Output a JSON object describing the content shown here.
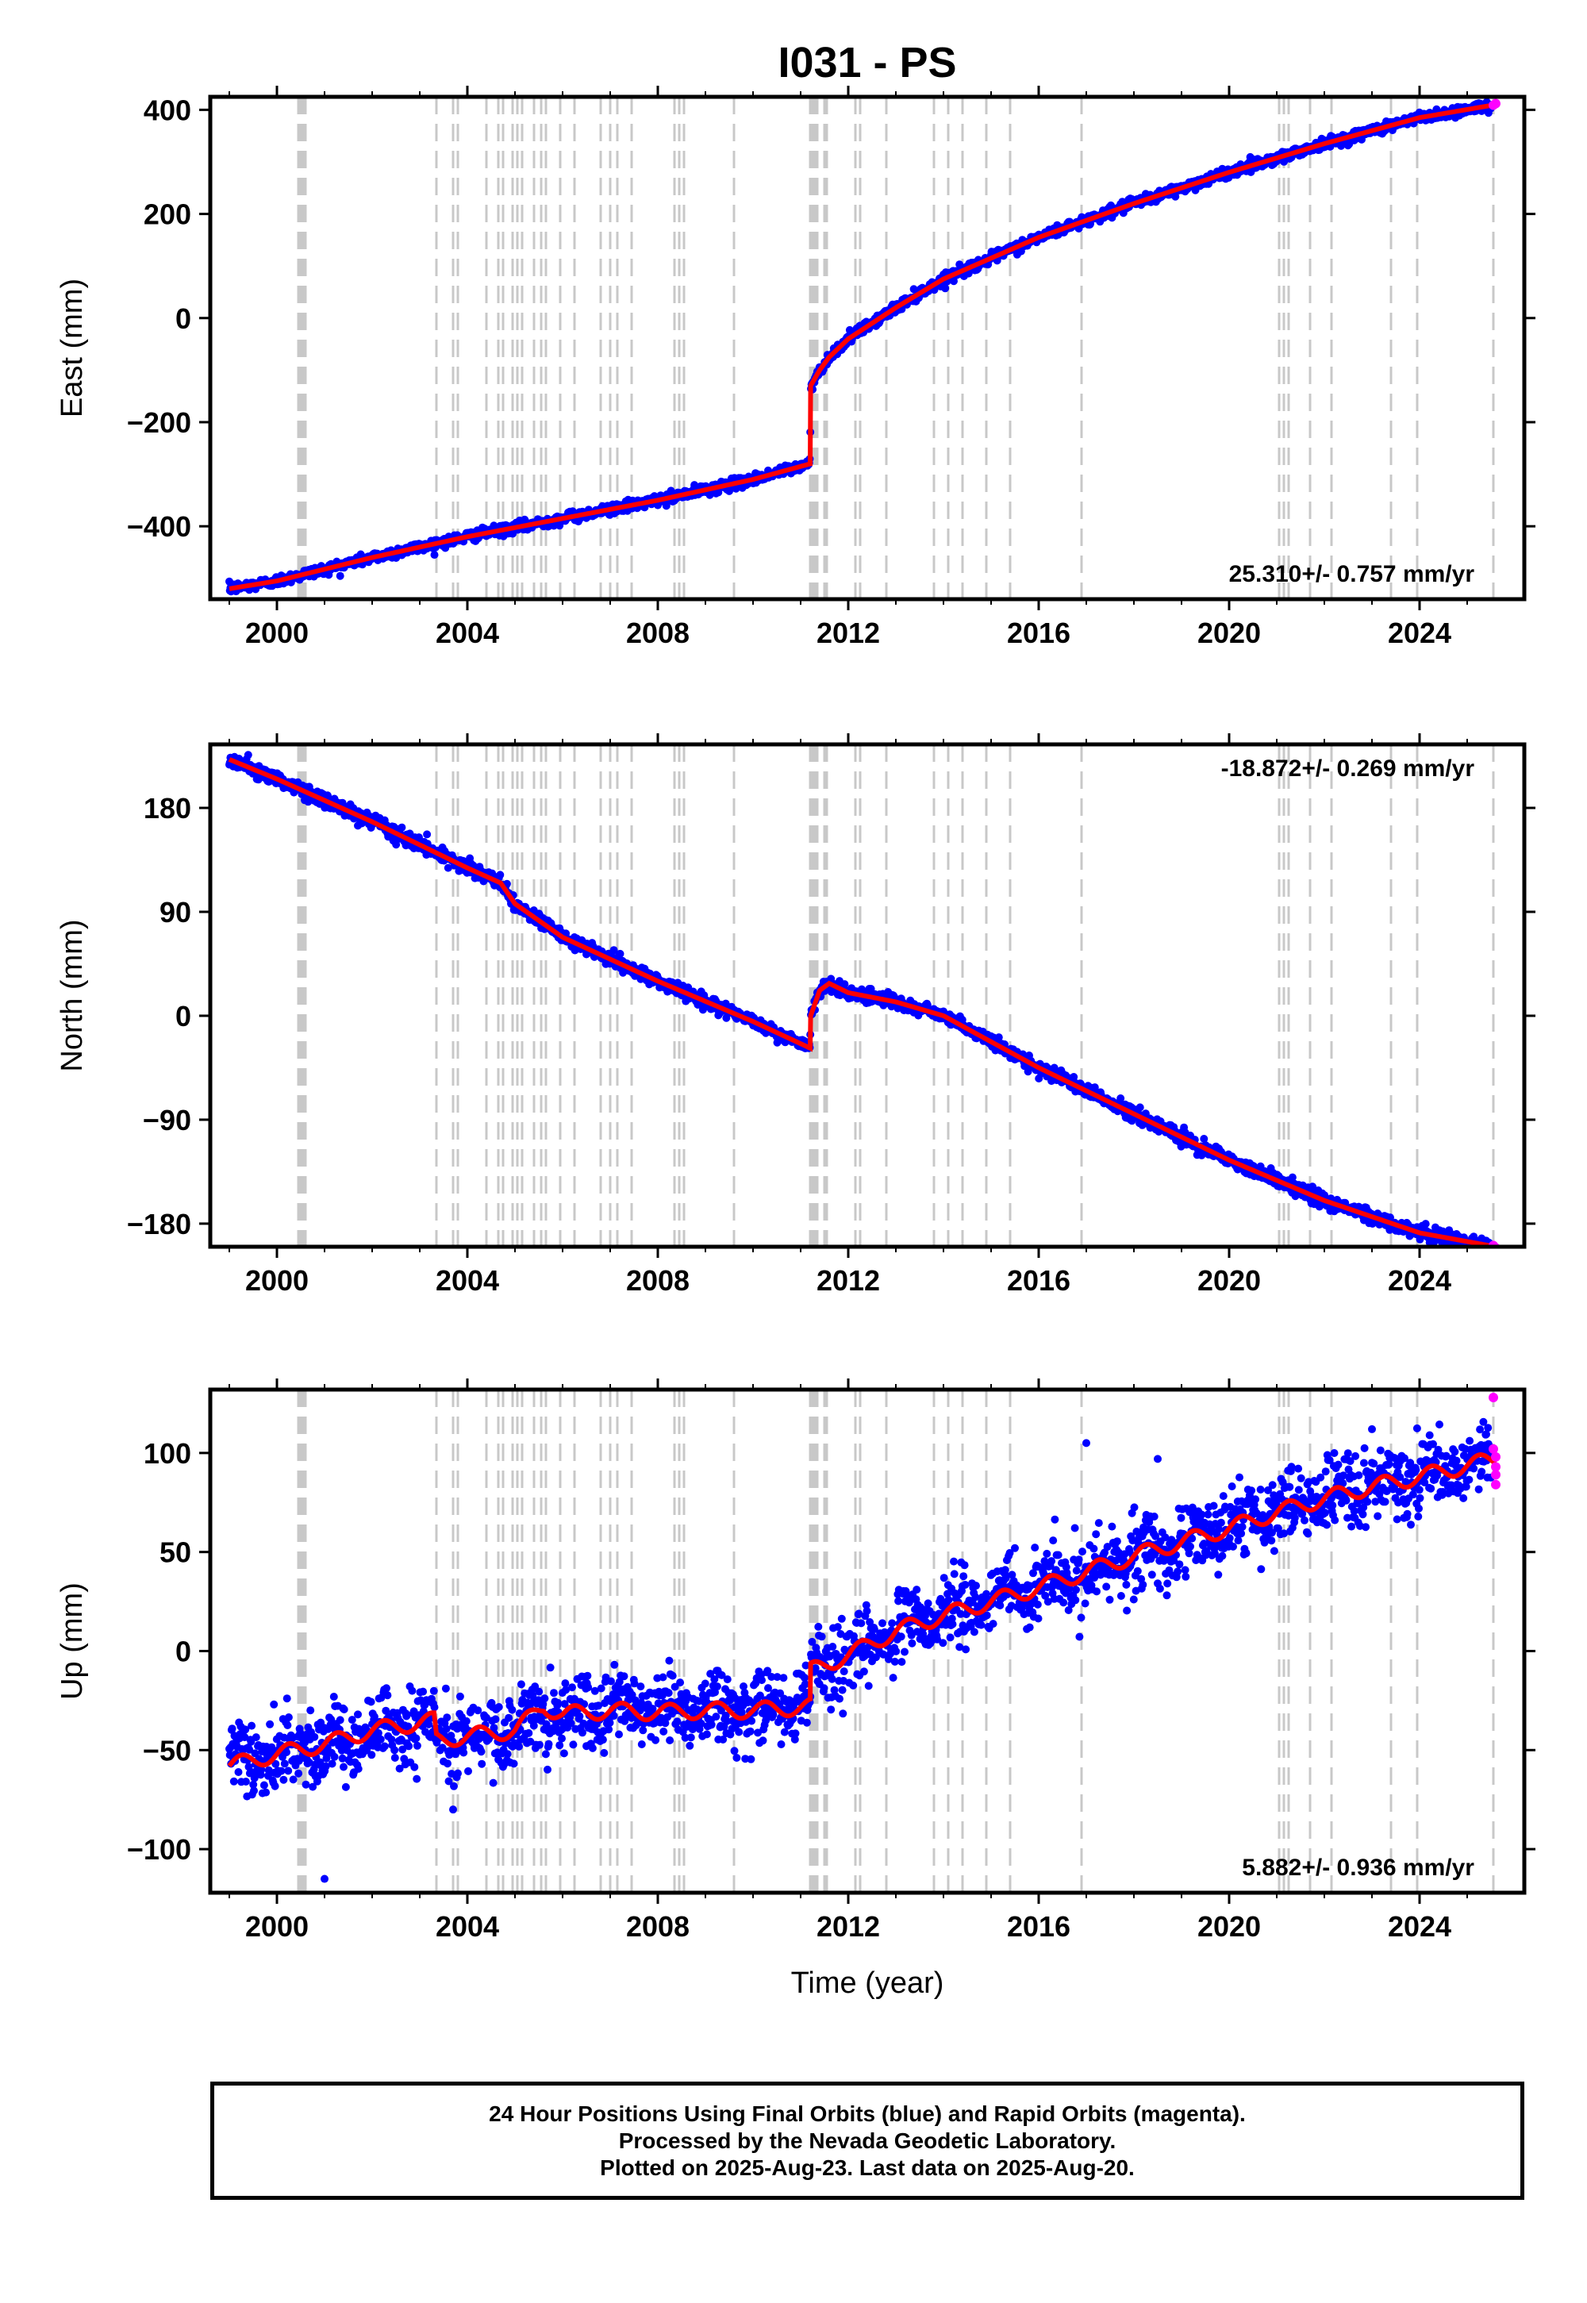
{
  "title": "I031 - PS",
  "shared": {
    "x_ticks": [
      "2000",
      "2004",
      "2008",
      "2012",
      "2016",
      "2020",
      "2024"
    ],
    "x_tick_values": [
      2000,
      2004,
      2008,
      2012,
      2016,
      2020,
      2024
    ],
    "xlim": [
      1998.6,
      2026.2
    ],
    "xlabel": "Time (year)",
    "event_lines_dense": [
      2000.45,
      2000.5,
      2000.55,
      2000.6,
      2011.2,
      2011.25,
      2011.3,
      2011.35,
      2011.5,
      2011.55
    ],
    "event_lines": [
      2003.35,
      2003.7,
      2003.8,
      2004.4,
      2004.65,
      2004.75,
      2004.95,
      2005.05,
      2005.15,
      2005.4,
      2005.55,
      2005.65,
      2005.95,
      2006.25,
      2006.8,
      2007.0,
      2007.15,
      2007.45,
      2008.35,
      2008.45,
      2008.55,
      2009.6,
      2012.15,
      2012.25,
      2012.8,
      2013.8,
      2014.1,
      2014.4,
      2014.9,
      2015.4,
      2016.9,
      2021.05,
      2021.15,
      2021.25,
      2021.7,
      2022.15,
      2023.4,
      2023.95,
      2025.55
    ]
  },
  "chart_data": [
    {
      "type": "scatter",
      "panel": "east",
      "ylabel": "East (mm)",
      "ylim": [
        -540,
        425
      ],
      "y_ticks": [
        "400",
        "200",
        "0",
        "−200",
        "−400"
      ],
      "y_tick_values": [
        400,
        200,
        0,
        -200,
        -400
      ],
      "rate_label": "25.310+/- 0.757 mm/yr",
      "rate_position": "bottom-right",
      "series": [
        {
          "name": "Final Orbits",
          "color": "#0000ff"
        },
        {
          "name": "Fit",
          "color": "#ff0000"
        },
        {
          "name": "Rapid Orbits",
          "color": "#ff00ff"
        }
      ],
      "trend": {
        "x": [
          1999.0,
          2000.0,
          2002.0,
          2004.0,
          2006.0,
          2008.0,
          2010.0,
          2011.2,
          2011.21,
          2011.4,
          2011.6,
          2012.0,
          2013.0,
          2014.0,
          2016.0,
          2018.0,
          2020.0,
          2022.0,
          2024.0,
          2025.6
        ],
        "y": [
          -520,
          -505,
          -460,
          -420,
          -385,
          -350,
          -310,
          -280,
          -130,
          -100,
          -75,
          -40,
          20,
          75,
          155,
          220,
          280,
          335,
          385,
          410
        ]
      },
      "noise": 5,
      "rapid_points": {
        "x": [
          2025.55,
          2025.6
        ],
        "y": [
          409,
          412
        ]
      }
    },
    {
      "type": "scatter",
      "panel": "north",
      "ylabel": "North (mm)",
      "ylim": [
        -200,
        235
      ],
      "y_ticks": [
        "180",
        "90",
        "0",
        "−90",
        "−180"
      ],
      "y_tick_values": [
        180,
        90,
        0,
        -90,
        -180
      ],
      "rate_label": "-18.872+/- 0.269 mm/yr",
      "rate_position": "top-right",
      "series": [
        {
          "name": "Final Orbits",
          "color": "#0000ff"
        },
        {
          "name": "Fit",
          "color": "#ff0000"
        },
        {
          "name": "Rapid Orbits",
          "color": "#ff00ff"
        }
      ],
      "trend": {
        "x": [
          1999.0,
          2000.0,
          2002.0,
          2004.0,
          2004.7,
          2005.0,
          2006.0,
          2008.0,
          2010.0,
          2011.2,
          2011.21,
          2011.4,
          2011.6,
          2012.0,
          2013.0,
          2014.0,
          2016.0,
          2018.0,
          2020.0,
          2022.0,
          2024.0,
          2025.6
        ],
        "y": [
          222,
          205,
          168,
          128,
          115,
          97,
          68,
          30,
          -5,
          -28,
          0,
          22,
          28,
          20,
          12,
          0,
          -45,
          -85,
          -125,
          -160,
          -188,
          -200
        ]
      },
      "noise": 3,
      "rapid_points": {
        "x": [
          2025.55,
          2025.6
        ],
        "y": [
          -199,
          -201
        ]
      }
    },
    {
      "type": "scatter",
      "panel": "up",
      "ylabel": "Up (mm)",
      "ylim": [
        -122,
        132
      ],
      "y_ticks": [
        "100",
        "50",
        "0",
        "−50",
        "−100"
      ],
      "y_tick_values": [
        100,
        50,
        0,
        -50,
        -100
      ],
      "rate_label": "5.882+/- 0.936 mm/yr",
      "rate_position": "bottom-right",
      "series": [
        {
          "name": "Final Orbits",
          "color": "#0000ff"
        },
        {
          "name": "Fit",
          "color": "#ff0000"
        },
        {
          "name": "Rapid Orbits",
          "color": "#ff00ff"
        }
      ],
      "trend": {
        "x": [
          1999.0,
          2000.0,
          2001.0,
          2002.0,
          2003.3,
          2003.35,
          2004.0,
          2005.0,
          2005.6,
          2006.0,
          2007.0,
          2008.0,
          2009.0,
          2010.0,
          2011.2,
          2011.21,
          2012.0,
          2013.0,
          2014.0,
          2015.0,
          2016.0,
          2017.0,
          2018.0,
          2019.0,
          2020.0,
          2021.0,
          2022.0,
          2023.0,
          2024.0,
          2025.6
        ],
        "y": [
          -58,
          -52,
          -47,
          -40,
          -35,
          -45,
          -43,
          -40,
          -28,
          -32,
          -30,
          -31,
          -30,
          -30,
          -28,
          -10,
          -2,
          10,
          18,
          25,
          32,
          40,
          48,
          55,
          62,
          70,
          77,
          83,
          88,
          97
        ]
      },
      "seasonal_amplitude": 4,
      "noise": 9,
      "outliers": {
        "x": [
          2001.0,
          2003.7,
          2017.0,
          2018.5,
          2023.0
        ],
        "y": [
          -115,
          -80,
          105,
          97,
          112
        ]
      },
      "rapid_points": {
        "x": [
          2025.55,
          2025.55,
          2025.6,
          2025.6,
          2025.6,
          2025.6
        ],
        "y": [
          128,
          102,
          98,
          93,
          89,
          84
        ]
      }
    }
  ],
  "footer": {
    "line1": "24 Hour Positions Using Final Orbits (blue) and Rapid Orbits (magenta).",
    "line2": "Processed by the Nevada Geodetic Laboratory.",
    "line3": "Plotted on 2025-Aug-23. Last data on 2025-Aug-20."
  }
}
